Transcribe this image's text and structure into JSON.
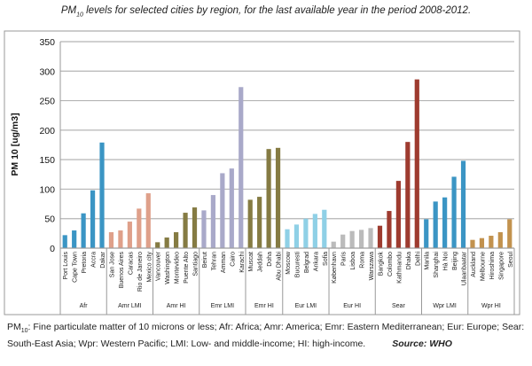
{
  "chart_data": {
    "type": "bar",
    "title": "PM10 levels for selected cities by region, for the last available year in the period 2008-2012.",
    "title_parts": {
      "pre": "PM",
      "sub": "10",
      "post": " levels for selected cities by region, for the last available year in the period 2008-2012."
    },
    "ylabel": "PM 10 [ug/m3]",
    "ylim": [
      0,
      350
    ],
    "yticks": [
      0,
      50,
      100,
      150,
      200,
      250,
      300,
      350
    ],
    "grid": true,
    "groups": [
      {
        "name": "Afr",
        "color": "#3b95c4",
        "categories": [
          "Port Louis",
          "Cape Town",
          "Pretoria",
          "Accra",
          "Dakar"
        ],
        "values": [
          22,
          30,
          59,
          98,
          179
        ]
      },
      {
        "name": "Amr LMI",
        "color": "#dfa08a",
        "categories": [
          "San Jose",
          "Buenos Aires",
          "Caracas",
          "Rio de Janeiro",
          "Mexico city"
        ],
        "values": [
          27,
          30,
          45,
          67,
          93
        ]
      },
      {
        "name": "Amr HI",
        "color": "#857b43",
        "categories": [
          "Vancouver",
          "Washington",
          "Montevideo",
          "Puente Alto",
          "Santiago"
        ],
        "values": [
          10,
          18,
          27,
          60,
          69
        ]
      },
      {
        "name": "Emr LMI",
        "color": "#a9a9c9",
        "categories": [
          "Beirut",
          "Tehran",
          "Amman",
          "Cairo",
          "Karachi"
        ],
        "values": [
          64,
          90,
          127,
          135,
          273
        ]
      },
      {
        "name": "Emr HI",
        "color": "#857b43",
        "categories": [
          "Muscat",
          "Jeddah",
          "Doha",
          "Abu Dhabi"
        ],
        "values": [
          82,
          87,
          168,
          170
        ]
      },
      {
        "name": "Eur LMI",
        "color": "#8fd0e6",
        "categories": [
          "Moscow",
          "Bucuresti",
          "Belgrad",
          "Ankara",
          "Sofia"
        ],
        "values": [
          32,
          40,
          50,
          58,
          65
        ]
      },
      {
        "name": "Eur HI",
        "color": "#bbbbbb",
        "categories": [
          "København",
          "Paris",
          "Lisboa",
          "Roma",
          "Warszawa"
        ],
        "values": [
          11,
          23,
          29,
          31,
          34
        ]
      },
      {
        "name": "Sear",
        "color": "#9e3b2f",
        "categories": [
          "Bangkok",
          "Colombo",
          "Kathmandu",
          "Dhaka",
          "Delhi"
        ],
        "values": [
          38,
          63,
          114,
          180,
          286
        ]
      },
      {
        "name": "Wpr LMI",
        "color": "#3b95c4",
        "categories": [
          "Manila",
          "Shanghai",
          "Hà Noi",
          "Beijing",
          "Ulaanbaatar"
        ],
        "values": [
          49,
          79,
          86,
          121,
          148
        ]
      },
      {
        "name": "Wpr HI",
        "color": "#c2924e",
        "categories": [
          "Auckland",
          "Melbourne",
          "Hiroshima",
          "Singapore",
          "Seoul"
        ],
        "values": [
          14,
          17,
          21,
          27,
          49
        ]
      }
    ]
  },
  "footer": {
    "pm": "PM",
    "pm_sub": "10",
    "text": ": Fine particulate matter of 10 microns or less; Afr: Africa;  Amr: America; Emr: Eastern Mediterranean; Eur: Europe; Sear: South-East Asia; Wpr: Western Pacific; LMI: Low- and middle-income; HI: high-income.",
    "source": "Source: WHO"
  }
}
